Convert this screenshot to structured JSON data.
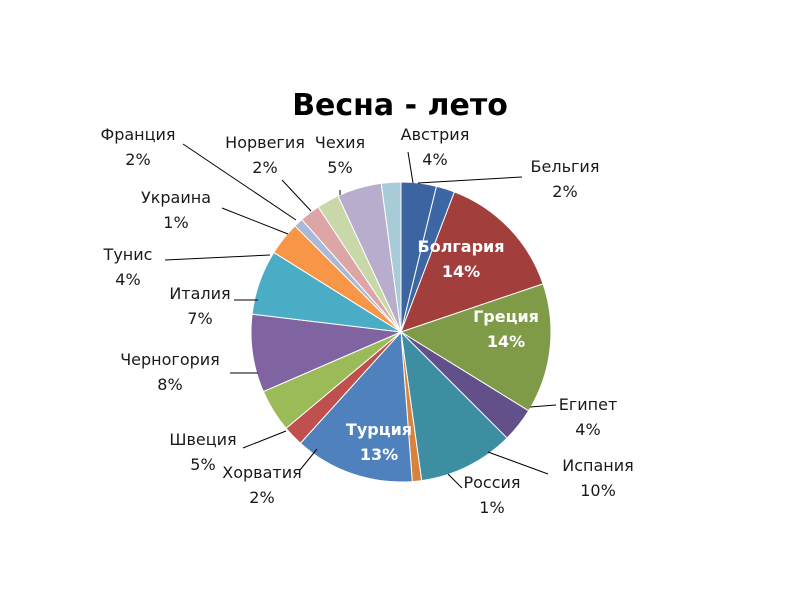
{
  "chart_data": {
    "type": "pie",
    "title": "Весна - лето",
    "slices": [
      {
        "name": "Австрия",
        "percent_label": "4%",
        "value": 3.8,
        "color": "#3c64a0",
        "label_style": "outside"
      },
      {
        "name": "Бельгия",
        "percent_label": "2%",
        "value": 2.0,
        "color": "#3d66a5",
        "label_style": "outside"
      },
      {
        "name": "Болгария",
        "percent_label": "14%",
        "value": 14.0,
        "color": "#a23f3d",
        "label_style": "inside"
      },
      {
        "name": "Греция",
        "percent_label": "14%",
        "value": 14.0,
        "color": "#809b47",
        "label_style": "inside"
      },
      {
        "name": "Египет",
        "percent_label": "4%",
        "value": 3.7,
        "color": "#62508a",
        "label_style": "outside"
      },
      {
        "name": "Испания",
        "percent_label": "10%",
        "value": 10.3,
        "color": "#3d8ea3",
        "label_style": "outside"
      },
      {
        "name": "Россия",
        "percent_label": "1%",
        "value": 1.0,
        "color": "#d9823b",
        "label_style": "outside"
      },
      {
        "name": "Турция",
        "percent_label": "13%",
        "value": 12.9,
        "color": "#4f81bd",
        "label_style": "inside"
      },
      {
        "name": "Хорватия",
        "percent_label": "2%",
        "value": 2.2,
        "color": "#c0504d",
        "label_style": "outside"
      },
      {
        "name": "Швеция",
        "percent_label": "5%",
        "value": 4.6,
        "color": "#9bbb59",
        "label_style": "outside"
      },
      {
        "name": "Черногория",
        "percent_label": "8%",
        "value": 8.4,
        "color": "#8064a2",
        "label_style": "outside"
      },
      {
        "name": "Италия",
        "percent_label": "7%",
        "value": 7.0,
        "color": "#4bacc6",
        "label_style": "outside"
      },
      {
        "name": "Тунис",
        "percent_label": "4%",
        "value": 3.6,
        "color": "#f79646",
        "label_style": "outside"
      },
      {
        "name": "Украина",
        "percent_label": "1%",
        "value": 1.0,
        "color": "#a9b9d8",
        "label_style": "outside"
      },
      {
        "name": "Франция",
        "percent_label": "2%",
        "value": 2.2,
        "color": "#dca6a6",
        "label_style": "outside"
      },
      {
        "name": "Норвегия",
        "percent_label": "2%",
        "value": 2.4,
        "color": "#c9d8a9",
        "label_style": "outside"
      },
      {
        "name": "Чехия",
        "percent_label": "5%",
        "value": 4.8,
        "color": "#b8adcc",
        "label_style": "outside"
      },
      {
        "name": "",
        "percent_label": "",
        "value": 2.1,
        "color": "#a7cbd7",
        "label_style": "none"
      }
    ],
    "start_angle_deg": 0,
    "direction": "clockwise",
    "legend": "none"
  }
}
